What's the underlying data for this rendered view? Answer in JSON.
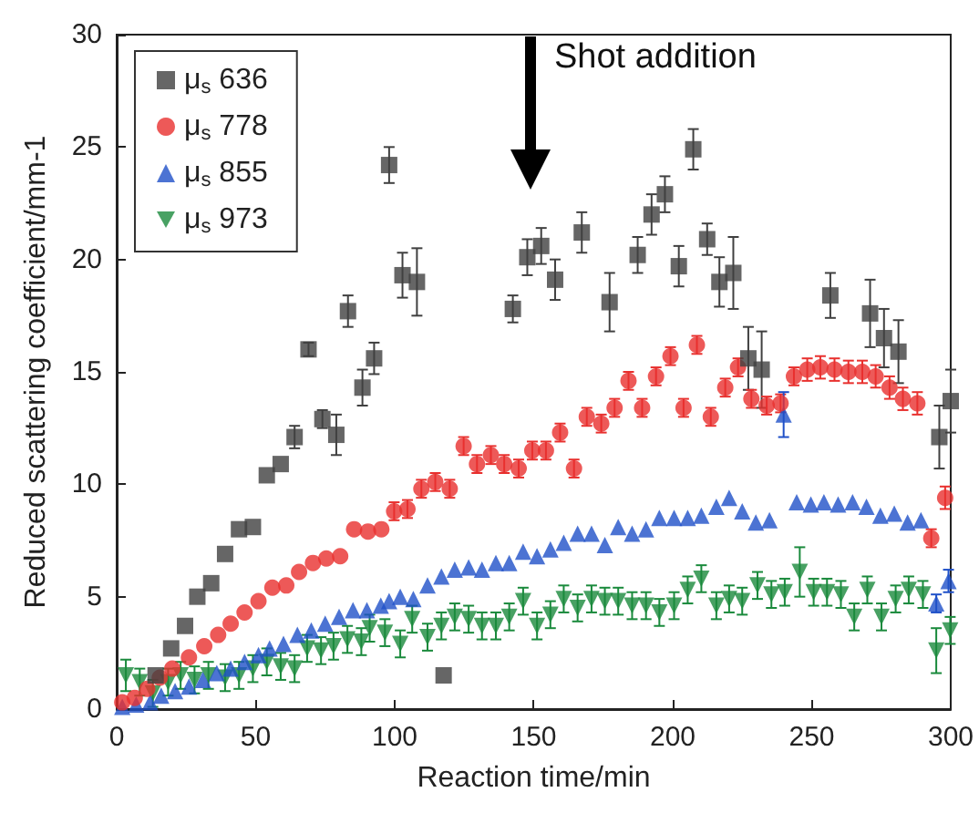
{
  "chart_data": {
    "type": "scatter",
    "xlabel": "Reaction time/min",
    "ylabel": "Reduced scattering coefficient/mm-1",
    "xlim": [
      0,
      300
    ],
    "xticks": [
      0,
      50,
      100,
      150,
      200,
      250,
      300
    ],
    "ylim": [
      0,
      30
    ],
    "yticks": [
      0,
      5,
      10,
      15,
      20,
      25,
      30
    ],
    "grid": false,
    "legend": "top left",
    "annotations": [
      "Shot addition"
    ],
    "series": [
      {
        "name": "μ$_{s}$ 636",
        "color": "#404040",
        "marker": "square",
        "x": [
          14,
          19.6,
          24.6,
          29,
          34,
          39,
          44,
          49,
          54,
          59,
          64,
          69,
          74,
          79,
          83.2,
          88.4,
          92.6,
          98,
          102.8,
          108,
          117.6,
          142.5,
          147.7,
          152.7,
          157.7,
          167.3,
          177.3,
          187.4,
          192.4,
          197.2,
          202.2,
          207.4,
          212.4,
          216.8,
          221.8,
          227.2,
          232,
          256.7,
          271,
          276,
          281.2,
          295.9,
          300
        ],
        "values": [
          1.5,
          2.7,
          3.7,
          5.0,
          5.6,
          6.9,
          8.0,
          8.1,
          10.4,
          10.9,
          12.1,
          16.0,
          12.9,
          12.2,
          17.7,
          14.3,
          15.6,
          24.2,
          19.3,
          19.0,
          1.5,
          17.8,
          20.1,
          20.6,
          19.1,
          21.2,
          18.1,
          20.2,
          22.0,
          22.9,
          19.7,
          24.9,
          20.9,
          19.0,
          19.4,
          15.6,
          15.1,
          18.4,
          17.6,
          16.5,
          15.9,
          12.1,
          13.7
        ],
        "errors": [
          null,
          null,
          null,
          null,
          null,
          null,
          null,
          null,
          null,
          null,
          0.5,
          0.3,
          0.4,
          0.9,
          0.7,
          0.8,
          0.7,
          0.8,
          1.0,
          1.5,
          null,
          0.6,
          0.8,
          0.8,
          0.9,
          0.9,
          1.3,
          0.8,
          0.9,
          0.8,
          0.9,
          0.9,
          0.7,
          1.1,
          1.6,
          1.4,
          1.7,
          1.0,
          1.5,
          1.3,
          1.4,
          1.4,
          1.4
        ]
      },
      {
        "name": "μ$_{s}$ 778",
        "color": "#e8302e",
        "marker": "circle",
        "x": [
          2,
          6.5,
          11,
          15.5,
          20,
          26,
          31.5,
          36.5,
          41,
          46,
          51,
          56,
          61,
          65.6,
          70.6,
          75.4,
          80.4,
          85.4,
          90.4,
          95.2,
          99.8,
          104.6,
          109.6,
          114.6,
          119.8,
          124.8,
          129.6,
          134.6,
          139.4,
          144.6,
          149.5,
          154.4,
          159.5,
          164.5,
          169.1,
          174.3,
          179.1,
          184.1,
          189,
          194,
          199.2,
          203.9,
          208.7,
          213.7,
          218.9,
          223.5,
          228.3,
          233.8,
          238.8,
          243.6,
          248.4,
          253.1,
          258.2,
          263.2,
          268.2,
          273,
          278,
          282.8,
          288,
          293,
          298
        ],
        "values": [
          0.3,
          0.5,
          0.9,
          1.4,
          1.8,
          2.3,
          2.8,
          3.3,
          3.8,
          4.3,
          4.8,
          5.4,
          5.5,
          6.1,
          6.5,
          6.7,
          6.8,
          8.0,
          7.9,
          8.0,
          8.8,
          8.9,
          9.8,
          10.1,
          9.8,
          11.7,
          10.9,
          11.3,
          10.9,
          10.7,
          11.5,
          11.5,
          12.3,
          10.7,
          13.0,
          12.7,
          13.4,
          14.6,
          13.4,
          14.8,
          15.7,
          13.4,
          16.2,
          13.0,
          14.3,
          15.2,
          13.8,
          13.5,
          13.6,
          14.8,
          15.1,
          15.2,
          15.1,
          15.0,
          15.0,
          14.8,
          14.3,
          13.8,
          13.6,
          7.6,
          9.4
        ],
        "errors": [
          null,
          null,
          null,
          null,
          null,
          null,
          null,
          null,
          null,
          null,
          null,
          null,
          null,
          null,
          null,
          null,
          null,
          null,
          null,
          null,
          0.4,
          0.4,
          0.4,
          0.4,
          0.4,
          0.4,
          0.4,
          0.4,
          0.4,
          0.4,
          0.4,
          0.4,
          0.4,
          0.4,
          0.4,
          0.4,
          0.4,
          0.4,
          0.4,
          0.4,
          0.4,
          0.4,
          0.4,
          0.4,
          0.4,
          0.4,
          0.4,
          0.4,
          0.4,
          0.4,
          0.5,
          0.5,
          0.5,
          0.5,
          0.5,
          0.5,
          0.5,
          0.5,
          0.5,
          0.4,
          0.5
        ]
      },
      {
        "name": "μ$_{s}$ 855",
        "color": "#1f50c8",
        "marker": "triangle",
        "x": [
          2,
          7,
          12,
          16,
          21,
          26,
          31,
          36,
          41,
          46,
          51,
          55,
          60,
          65,
          70,
          75,
          80,
          85,
          90,
          95,
          98,
          102,
          106.7,
          111.8,
          116.8,
          121.6,
          126.6,
          131.4,
          136.4,
          141.2,
          146.2,
          151.2,
          156,
          160.8,
          165.8,
          170.8,
          175.6,
          180.4,
          185.4,
          190.4,
          195.2,
          200.5,
          205.4,
          210.3,
          215.7,
          220.3,
          225,
          229.9,
          234.8,
          239.9,
          244.6,
          249.7,
          254.4,
          259.5,
          264.7,
          269.7,
          274.7,
          279.7,
          284.5,
          289.3,
          294.8,
          299.2
        ],
        "values": [
          0.1,
          0.2,
          0.3,
          0.6,
          0.8,
          1.0,
          1.3,
          1.6,
          1.8,
          2.1,
          2.4,
          2.7,
          2.9,
          3.3,
          3.5,
          3.8,
          4.1,
          4.4,
          4.4,
          4.6,
          4.8,
          5.0,
          4.9,
          5.5,
          5.9,
          6.2,
          6.3,
          6.2,
          6.5,
          6.5,
          7.0,
          6.8,
          7.1,
          7.4,
          7.8,
          7.8,
          7.3,
          8.1,
          7.8,
          8.0,
          8.5,
          8.5,
          8.5,
          8.6,
          9.0,
          9.4,
          8.8,
          8.3,
          8.4,
          13.1,
          9.2,
          9.1,
          9.2,
          9.1,
          9.2,
          9.0,
          8.6,
          8.7,
          8.3,
          8.4,
          4.7,
          5.7
        ],
        "errors": [
          null,
          null,
          null,
          null,
          null,
          null,
          null,
          null,
          null,
          null,
          null,
          null,
          null,
          null,
          null,
          null,
          null,
          null,
          null,
          null,
          null,
          null,
          null,
          null,
          null,
          null,
          null,
          null,
          null,
          null,
          null,
          null,
          null,
          null,
          null,
          null,
          null,
          null,
          null,
          null,
          null,
          null,
          null,
          null,
          null,
          null,
          null,
          null,
          null,
          1.0,
          null,
          null,
          null,
          null,
          null,
          null,
          null,
          null,
          null,
          null,
          0.4,
          0.5
        ]
      },
      {
        "name": "μ$_{s}$ 973",
        "color": "#1a8a3c",
        "marker": "triangle-down",
        "x": [
          3.3,
          8.3,
          13,
          18.5,
          23,
          28,
          33,
          39,
          44,
          49,
          54,
          59,
          64,
          68.5,
          73.5,
          78,
          83,
          88,
          91,
          96.5,
          102,
          106.3,
          111.8,
          116.8,
          121.6,
          126.6,
          131.4,
          136.4,
          141.2,
          146.2,
          151.2,
          156,
          160.8,
          165.8,
          170.8,
          175.6,
          180.4,
          185.4,
          190.4,
          195.2,
          200.5,
          205.4,
          210.3,
          215.7,
          220.3,
          225,
          230.5,
          235.5,
          240.3,
          245.7,
          250.7,
          255.5,
          260.5,
          265.3,
          270,
          275.1,
          280.2,
          284.9,
          290,
          294.8,
          299.8
        ],
        "values": [
          1.5,
          1.2,
          0.7,
          1.2,
          1.5,
          1.3,
          1.5,
          1.4,
          1.5,
          1.8,
          2.1,
          1.9,
          1.8,
          2.7,
          2.6,
          2.8,
          3.1,
          3.0,
          3.6,
          3.4,
          2.9,
          4.0,
          3.2,
          3.7,
          4.1,
          4.0,
          3.7,
          3.7,
          4.1,
          4.8,
          3.7,
          4.2,
          4.9,
          4.5,
          4.9,
          4.8,
          4.8,
          4.6,
          4.6,
          4.3,
          4.6,
          5.3,
          5.8,
          4.6,
          4.9,
          4.8,
          5.5,
          5.1,
          5.2,
          6.1,
          5.2,
          5.2,
          5.1,
          4.1,
          5.3,
          4.1,
          4.9,
          5.3,
          5.1,
          2.6,
          3.5
        ],
        "errors": [
          0.7,
          0.6,
          0.6,
          0.6,
          0.6,
          0.6,
          0.6,
          0.6,
          0.6,
          0.6,
          0.6,
          0.6,
          0.6,
          0.6,
          0.6,
          0.6,
          0.6,
          0.6,
          0.6,
          0.6,
          0.6,
          0.6,
          0.6,
          0.6,
          0.6,
          0.6,
          0.6,
          0.6,
          0.6,
          0.6,
          0.6,
          0.6,
          0.6,
          0.6,
          0.6,
          0.6,
          0.6,
          0.6,
          0.6,
          0.6,
          0.6,
          0.6,
          0.6,
          0.6,
          0.6,
          0.6,
          0.6,
          0.6,
          0.6,
          1.1,
          0.6,
          0.6,
          0.6,
          0.6,
          0.6,
          0.6,
          0.6,
          0.6,
          0.6,
          1.0,
          0.6
        ]
      }
    ]
  }
}
